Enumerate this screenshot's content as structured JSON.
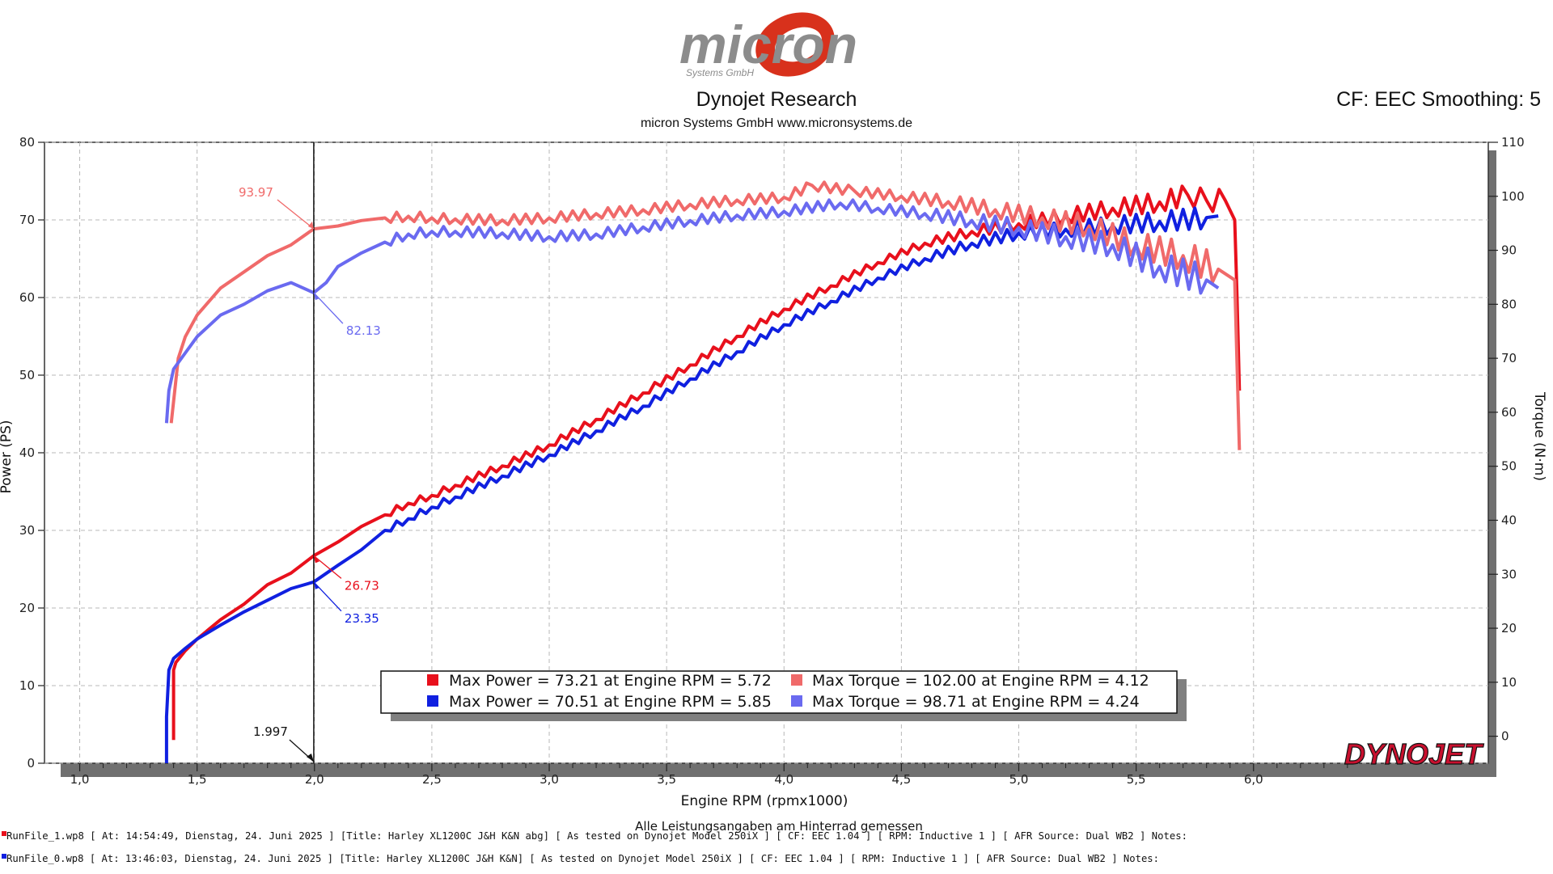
{
  "header": {
    "logo_text": "micron",
    "logo_subtext": "Systems GmbH",
    "title": "Dynojet Research",
    "subtitle": "micron Systems GmbH  www.micronsystems.de",
    "cf_label": "CF: EEC Smoothing: 5"
  },
  "colors": {
    "power_run1": "#e8101c",
    "power_run0": "#1020e0",
    "torque_run1": "#f06a6a",
    "torque_run0": "#6a6af0"
  },
  "chart_data": {
    "type": "line",
    "xlabel": "Engine RPM (rpmx1000)",
    "ylabel": "Power (PS)",
    "y2label": "Torque (N·m)",
    "xlim": [
      0.85,
      7.0
    ],
    "ylim": [
      0,
      80
    ],
    "y2lim": [
      -5,
      110
    ],
    "x_ticks": [
      "1,0",
      "1,5",
      "2,0",
      "2,5",
      "3,0",
      "3,5",
      "4,0",
      "4,5",
      "5,0",
      "5,5",
      "6,0"
    ],
    "x_tick_values": [
      1.0,
      1.5,
      2.0,
      2.5,
      3.0,
      3.5,
      4.0,
      4.5,
      5.0,
      5.5,
      6.0
    ],
    "y_ticks": [
      0,
      10,
      20,
      30,
      40,
      50,
      60,
      70,
      80
    ],
    "y2_ticks": [
      0,
      10,
      20,
      30,
      40,
      50,
      60,
      70,
      80,
      90,
      100,
      110
    ],
    "grid": true,
    "cursor": {
      "x": 1.997,
      "label": "1.997"
    },
    "series": [
      {
        "key": "power_run1",
        "axis": "left",
        "x": [
          1.4,
          1.4,
          1.41,
          1.45,
          1.5,
          1.6,
          1.7,
          1.8,
          1.9,
          1.997,
          2.1,
          2.2,
          2.3,
          2.4,
          2.5,
          2.6,
          2.8,
          3.0,
          3.2,
          3.4,
          3.6,
          3.8,
          4.0,
          4.2,
          4.4,
          4.6,
          4.8,
          5.0,
          5.2,
          5.4,
          5.6,
          5.72,
          5.8,
          5.88,
          5.92,
          5.93,
          5.94
        ],
        "y": [
          3,
          12,
          13,
          14.5,
          16,
          18.5,
          20.5,
          23,
          24.5,
          26.73,
          28.5,
          30.5,
          32,
          33.5,
          34.5,
          35.8,
          38.3,
          41,
          44.3,
          47.7,
          51.3,
          55,
          58.5,
          61.5,
          64.5,
          67,
          68.5,
          69.5,
          70.5,
          71.5,
          72.3,
          73.21,
          72.5,
          72.5,
          70,
          60,
          48
        ]
      },
      {
        "key": "power_run0",
        "axis": "left",
        "x": [
          1.37,
          1.37,
          1.38,
          1.4,
          1.45,
          1.5,
          1.6,
          1.7,
          1.8,
          1.9,
          1.997,
          2.1,
          2.2,
          2.3,
          2.4,
          2.5,
          2.6,
          2.8,
          3.0,
          3.2,
          3.4,
          3.6,
          3.8,
          4.0,
          4.2,
          4.4,
          4.6,
          4.8,
          5.0,
          5.2,
          5.4,
          5.6,
          5.8,
          5.85
        ],
        "y": [
          0,
          6,
          12,
          13.5,
          14.8,
          16,
          17.8,
          19.5,
          21,
          22.5,
          23.35,
          25.5,
          27.5,
          30,
          31.5,
          33,
          34.3,
          37,
          39.7,
          42.8,
          46,
          49.5,
          53,
          56.5,
          59.5,
          62.5,
          65,
          67,
          68.3,
          68.8,
          69.3,
          69.8,
          70.3,
          70.51
        ]
      },
      {
        "key": "torque_run1",
        "axis": "right",
        "x": [
          1.39,
          1.4,
          1.42,
          1.45,
          1.5,
          1.6,
          1.7,
          1.8,
          1.9,
          1.997,
          2.1,
          2.2,
          2.3,
          2.4,
          2.5,
          2.6,
          2.8,
          3.0,
          3.2,
          3.4,
          3.6,
          3.8,
          4.0,
          4.12,
          4.3,
          4.5,
          4.7,
          4.9,
          5.1,
          5.3,
          5.5,
          5.7,
          5.85,
          5.92,
          5.94
        ],
        "y": [
          58,
          62,
          70,
          74,
          78,
          83,
          86,
          89,
          91,
          93.97,
          94.5,
          95.5,
          96,
          96.3,
          96,
          95.8,
          95.6,
          96,
          96.8,
          97.5,
          98.5,
          99.3,
          99.8,
          102.0,
          101,
          100,
          99,
          97.5,
          96,
          94.5,
          91,
          89,
          86.5,
          84.5,
          53
        ]
      },
      {
        "key": "torque_run0",
        "axis": "right",
        "x": [
          1.37,
          1.38,
          1.4,
          1.45,
          1.5,
          1.6,
          1.7,
          1.8,
          1.9,
          1.997,
          2.05,
          2.1,
          2.2,
          2.3,
          2.4,
          2.5,
          2.6,
          2.8,
          3.0,
          3.2,
          3.4,
          3.6,
          3.8,
          4.0,
          4.24,
          4.4,
          4.6,
          4.8,
          5.0,
          5.2,
          5.4,
          5.6,
          5.8,
          5.85
        ],
        "y": [
          58,
          64,
          68,
          71,
          74,
          78,
          80,
          82.5,
          84,
          82.13,
          84,
          87,
          89.5,
          91.5,
          93,
          93.5,
          93.5,
          93.2,
          92.5,
          93,
          94.3,
          95.5,
          96.5,
          97.2,
          98.71,
          97.8,
          96.8,
          95.5,
          94.2,
          92.5,
          91,
          87,
          84.5,
          83
        ]
      }
    ],
    "annotations": [
      {
        "text": "93.97",
        "series": "torque_run1",
        "x": 1.997,
        "y": 93.97
      },
      {
        "text": "82.13",
        "series": "torque_run0",
        "x": 1.997,
        "y": 82.13
      },
      {
        "text": "26.73",
        "series": "power_run1",
        "x": 1.997,
        "y": 26.73
      },
      {
        "text": "23.35",
        "series": "power_run0",
        "x": 1.997,
        "y": 23.35
      }
    ],
    "legend": {
      "placement": "bottom-center",
      "entries": [
        {
          "key": "power_run1",
          "label": "Max Power = 73.21 at Engine RPM = 5.72"
        },
        {
          "key": "torque_run1",
          "label": "Max Torque = 102.00 at Engine RPM = 4.12"
        },
        {
          "key": "power_run0",
          "label": "Max Power = 70.51 at Engine RPM = 5.85"
        },
        {
          "key": "torque_run0",
          "label": "Max Torque = 98.71 at Engine RPM = 4.24"
        }
      ]
    },
    "watermark": "DYNOJET"
  },
  "footer": {
    "note": "Alle Leistungsangaben am Hinterrad gemessen",
    "runs": [
      {
        "key": "power_run1",
        "text": "RunFile_1.wp8 [ At:  14:54:49,  Dienstag,  24.  Juni  2025 ] [Title:  Harley  XL1200C  J&H  K&N  abg]   [ As  tested  on  Dynojet  Model  250iX ] [ CF:  EEC  1.04 ] [ RPM:  Inductive  1 ] [ AFR  Source:  Dual  WB2 ] Notes:"
      },
      {
        "key": "power_run0",
        "text": "RunFile_0.wp8 [ At:  13:46:03,  Dienstag,  24.  Juni  2025 ] [Title:  Harley  XL1200C  J&H  K&N]   [ As  tested  on  Dynojet  Model  250iX ] [ CF:  EEC  1.04 ] [ RPM:  Inductive  1 ] [ AFR  Source:  Dual  WB2 ] Notes:"
      }
    ]
  }
}
